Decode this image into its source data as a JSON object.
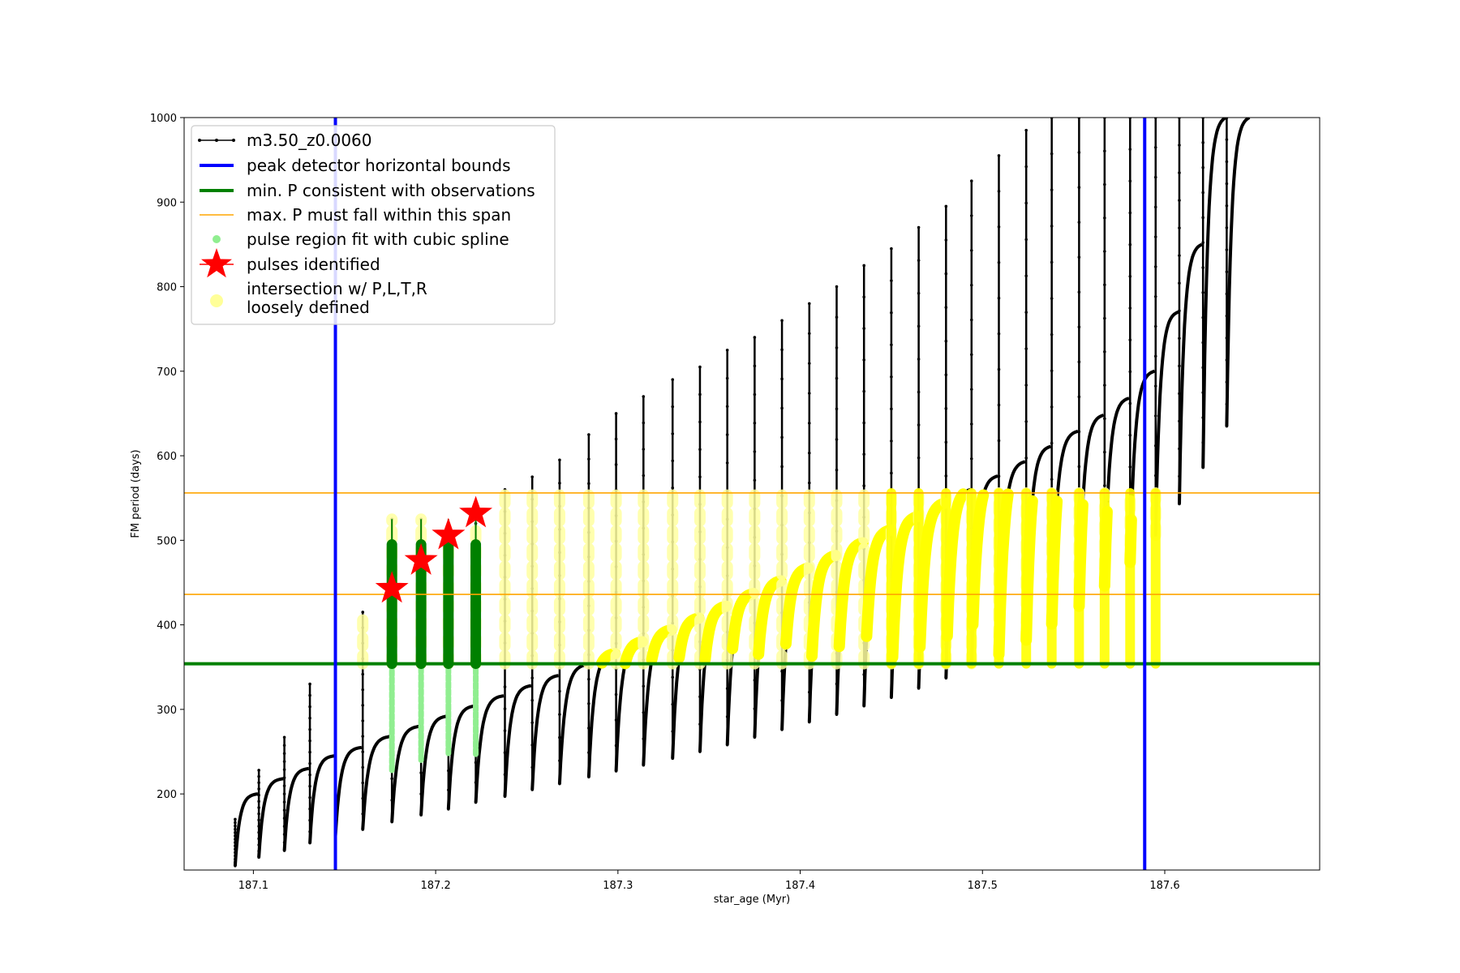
{
  "chart_data": {
    "type": "scatter",
    "title": "",
    "xlabel": "star_age (Myr)",
    "ylabel": "FM period (days)",
    "xlim": [
      187.062,
      187.685
    ],
    "ylim": [
      110,
      1000
    ],
    "xticks": [
      187.1,
      187.2,
      187.3,
      187.4,
      187.5,
      187.6
    ],
    "yticks": [
      200,
      300,
      400,
      500,
      600,
      700,
      800,
      900,
      1000
    ],
    "grid": false,
    "legend_placement": "upper-left",
    "legend": [
      {
        "label": "m3.50_z0.0060",
        "kind": "line-marker",
        "color": "#000000"
      },
      {
        "label": "peak detector horizontal bounds",
        "kind": "line",
        "color": "#0000ff"
      },
      {
        "label": "min. P consistent with observations",
        "kind": "line",
        "color": "#008000"
      },
      {
        "label": "max. P must fall within this span",
        "kind": "thin-line",
        "color": "#ffa500"
      },
      {
        "label": "pulse region fit with cubic spline",
        "kind": "dot",
        "color": "#90ee90"
      },
      {
        "label": "pulses identified",
        "kind": "star",
        "color": "#ff0000"
      },
      {
        "label": "intersection w/ P,L,T,R",
        "label2": "loosely defined",
        "kind": "dot-large",
        "color": "#ffff99"
      }
    ],
    "vlines": {
      "name": "peak detector horizontal bounds",
      "x": [
        187.145,
        187.589
      ],
      "color": "#0000ff"
    },
    "hline_min": {
      "name": "min. P consistent with observations",
      "y": 354,
      "color": "#008000"
    },
    "hlines_max": {
      "name": "max. P must fall within this span",
      "y": [
        436,
        556
      ],
      "color": "#ffa500"
    },
    "pulses": {
      "name": "pulses identified",
      "x": [
        187.176,
        187.192,
        187.207,
        187.222
      ],
      "y": [
        443,
        476,
        506,
        532
      ],
      "color": "#ff0000"
    },
    "track": {
      "name": "m3.50_z0.0060",
      "color": "#000000",
      "pulse_ages": [
        187.09,
        187.103,
        187.117,
        187.131,
        187.145,
        187.16,
        187.176,
        187.192,
        187.207,
        187.222,
        187.238,
        187.253,
        187.268,
        187.284,
        187.299,
        187.314,
        187.33,
        187.345,
        187.36,
        187.375,
        187.39,
        187.405,
        187.42,
        187.435,
        187.45,
        187.465,
        187.48,
        187.494,
        187.509,
        187.524,
        187.538,
        187.553,
        187.567,
        187.581,
        187.595,
        187.608,
        187.621,
        187.634
      ],
      "cycle_min_period": [
        115,
        125,
        133,
        142,
        150,
        158,
        167,
        175,
        182,
        190,
        197,
        205,
        212,
        220,
        227,
        234,
        242,
        250,
        258,
        267,
        276,
        285,
        294,
        304,
        314,
        325,
        337,
        350,
        365,
        382,
        401,
        422,
        446,
        474,
        506,
        543,
        586,
        635
      ],
      "cycle_max_period": [
        200,
        218,
        230,
        245,
        255,
        268,
        280,
        292,
        304,
        316,
        328,
        340,
        353,
        366,
        380,
        394,
        408,
        422,
        437,
        452,
        467,
        482,
        497,
        512,
        528,
        544,
        560,
        576,
        593,
        611,
        629,
        648,
        668,
        700,
        770,
        850,
        1000,
        1000
      ],
      "spike_peak_period": [
        170,
        228,
        267,
        330,
        320,
        415,
        525,
        525,
        500,
        520,
        560,
        575,
        595,
        625,
        650,
        670,
        690,
        705,
        725,
        740,
        760,
        780,
        800,
        825,
        845,
        870,
        895,
        925,
        955,
        985,
        1000,
        1000,
        1000,
        1000,
        1000,
        1000,
        1000,
        1000
      ]
    },
    "spline_fit": {
      "name": "pulse region fit with cubic spline",
      "x": [
        187.176,
        187.192,
        187.207,
        187.222
      ],
      "y_low": [
        228,
        240,
        248,
        247
      ],
      "y_high": [
        495,
        495,
        495,
        495
      ],
      "dark_color": "#008000",
      "light_color": "#90ee90"
    },
    "intersection_region": {
      "name": "intersection w/ P,L,T,R loosely defined",
      "color": "#ffff00",
      "faint_color": "#ffffa0",
      "y_range": [
        354,
        556
      ]
    }
  }
}
